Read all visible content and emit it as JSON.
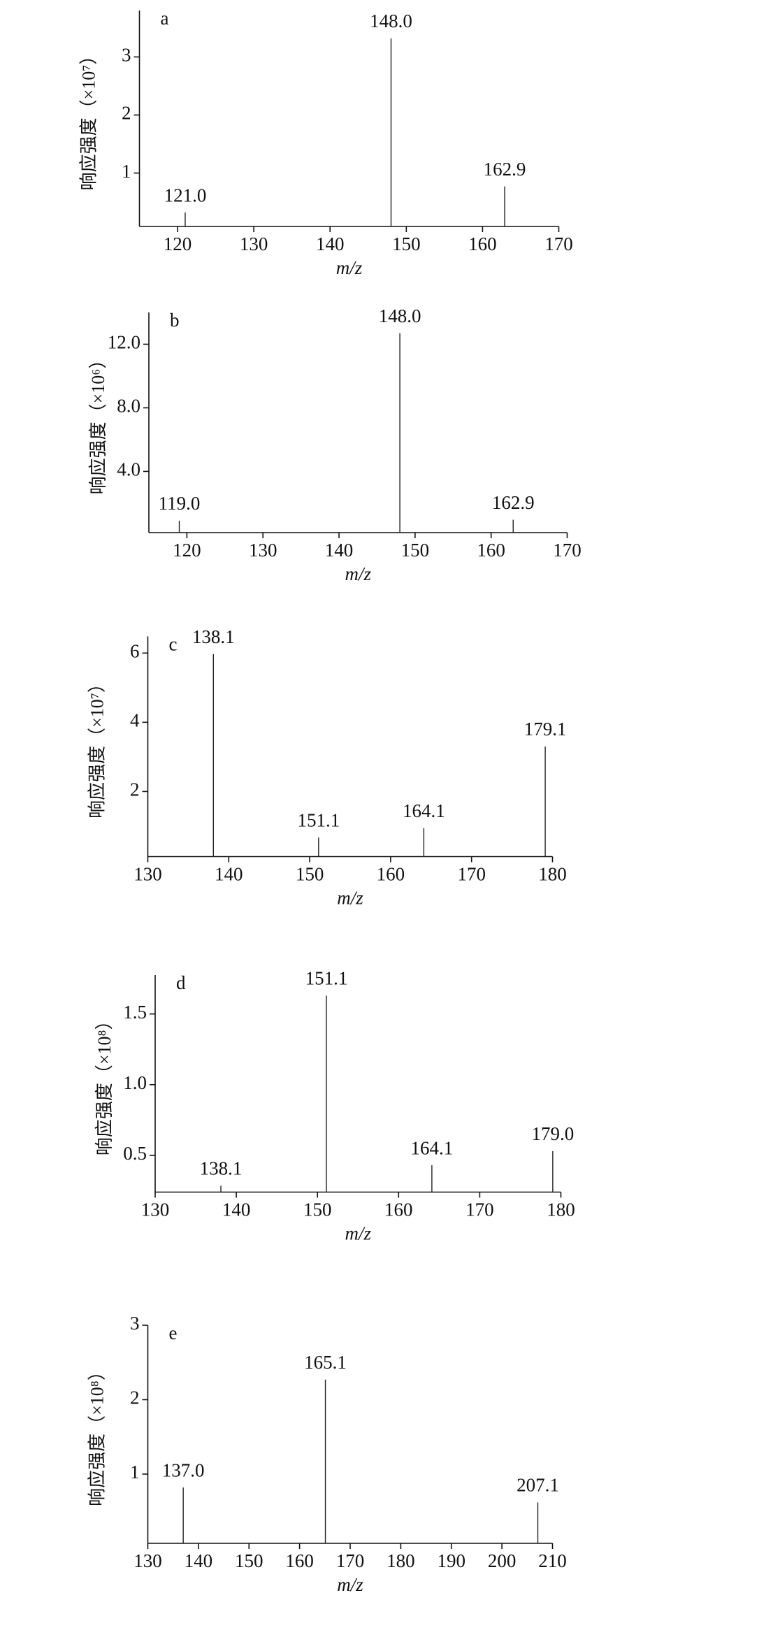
{
  "chart_data": [
    {
      "type": "stem",
      "panel": "a",
      "ylabel": "响应强度（×10⁷）",
      "xlabel": "m/z",
      "x": [
        121.0,
        148.0,
        162.9
      ],
      "x_labels": [
        "121.0",
        "148.0",
        "162.9"
      ],
      "values": [
        0.32,
        3.32,
        0.77
      ],
      "xlim": [
        115,
        170
      ],
      "xticks": [
        120,
        130,
        140,
        150,
        160,
        170
      ],
      "ylim": [
        0.08,
        3.8
      ],
      "yticks": [
        1,
        2,
        3
      ],
      "color": "#222222"
    },
    {
      "type": "stem",
      "panel": "b",
      "ylabel": "响应强度（×10⁶）",
      "xlabel": "m/z",
      "x": [
        119.0,
        148.0,
        162.9
      ],
      "x_labels": [
        "119.0",
        "148.0",
        "162.9"
      ],
      "values": [
        0.9,
        12.7,
        0.96
      ],
      "xlim": [
        115,
        170
      ],
      "xticks": [
        120,
        130,
        140,
        150,
        160,
        170
      ],
      "ylim": [
        0.15,
        14.0
      ],
      "yticks": [
        {
          "value": 4,
          "label": "4.0"
        },
        {
          "value": 8,
          "label": "8.0"
        },
        {
          "value": 12,
          "label": "12.0"
        }
      ],
      "color": "#222222"
    },
    {
      "type": "stem",
      "panel": "c",
      "ylabel": "响应强度（×10⁷）",
      "xlabel": "m/z",
      "x": [
        138.1,
        151.1,
        164.1,
        179.1
      ],
      "x_labels": [
        "138.1",
        "151.1",
        "164.1",
        "179.1"
      ],
      "values": [
        5.97,
        0.67,
        0.94,
        3.3
      ],
      "xlim": [
        130,
        180
      ],
      "xticks": [
        130,
        140,
        150,
        160,
        170,
        180
      ],
      "ylim": [
        0.12,
        6.48
      ],
      "yticks": [
        2,
        4,
        6
      ],
      "color": "#222222"
    },
    {
      "type": "stem",
      "panel": "d",
      "ylabel": "响应强度（×10⁸）",
      "xlabel": "m/z",
      "x": [
        138.1,
        151.1,
        164.1,
        179.0
      ],
      "x_labels": [
        "138.1",
        "151.1",
        "164.1",
        "179.0"
      ],
      "values": [
        0.285,
        1.63,
        0.43,
        0.53
      ],
      "xlim": [
        130,
        180
      ],
      "xticks": [
        130,
        140,
        150,
        160,
        170,
        180
      ],
      "ylim": [
        0.24,
        1.775
      ],
      "yticks": [
        0.5,
        {
          "value": 1,
          "label": "1.0"
        },
        1.5
      ],
      "color": "#222222"
    },
    {
      "type": "stem",
      "panel": "e",
      "ylabel": "响应强度（×10⁸）",
      "xlabel": "m/z",
      "x": [
        137.0,
        165.1,
        207.1
      ],
      "x_labels": [
        "137.0",
        "165.1",
        "207.1"
      ],
      "values": [
        0.82,
        2.27,
        0.62
      ],
      "xlim": [
        130,
        210
      ],
      "xticks": [
        130,
        140,
        150,
        160,
        170,
        180,
        190,
        200,
        210
      ],
      "ylim": [
        0.07,
        3
      ],
      "yticks": [
        1,
        2,
        3
      ],
      "color": "#222222"
    }
  ]
}
